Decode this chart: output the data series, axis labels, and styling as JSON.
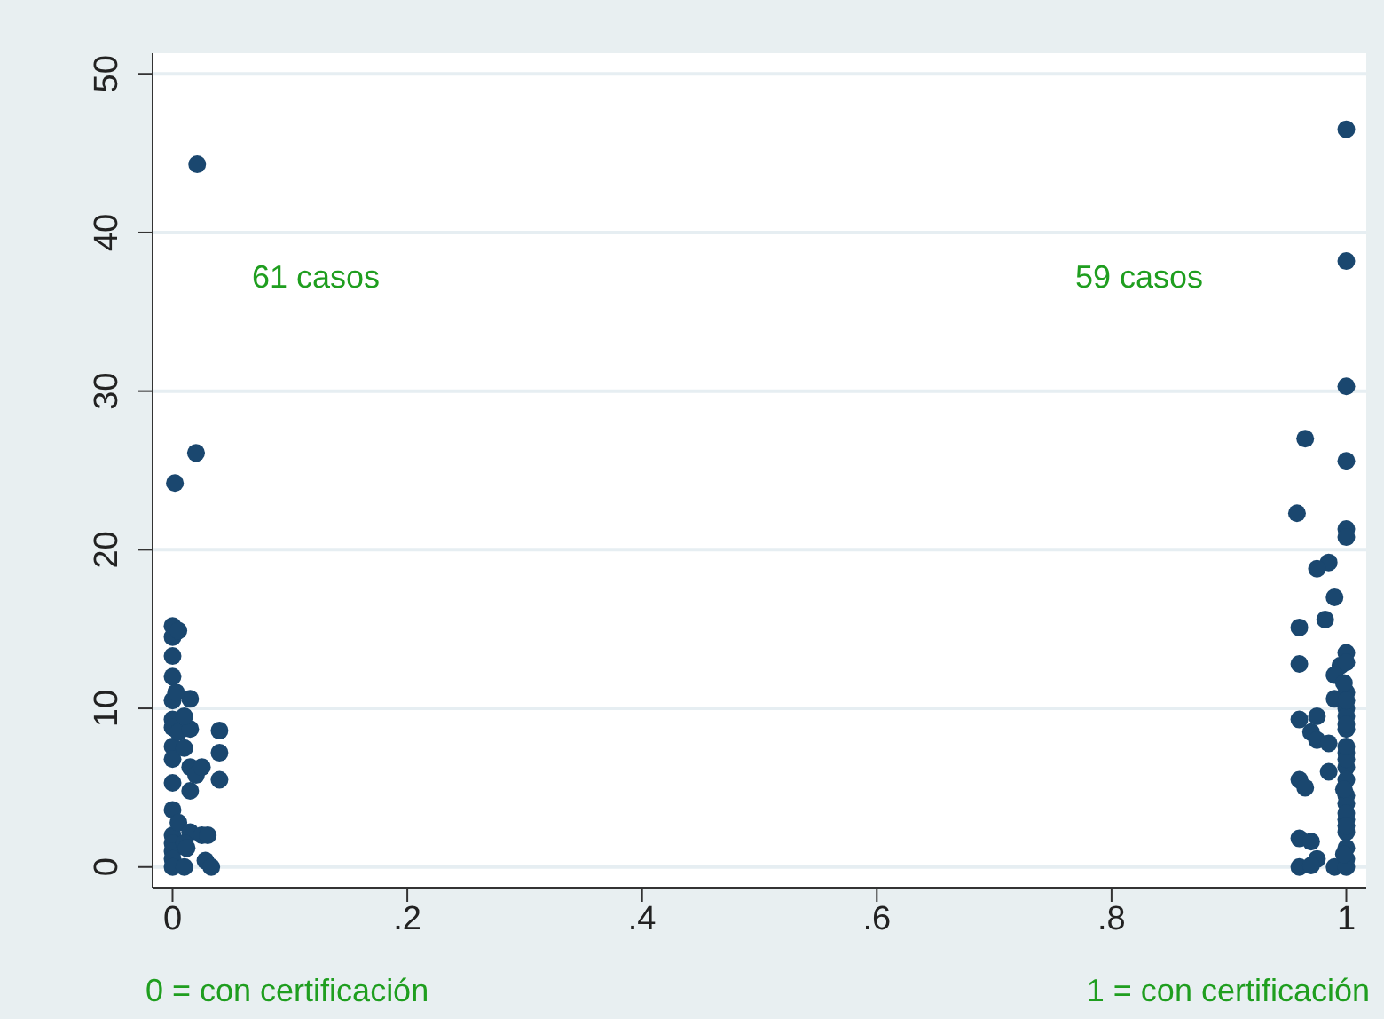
{
  "chart_data": {
    "type": "scatter",
    "marker": "circle",
    "grid": "y",
    "xlim": [
      -0.017,
      1.017
    ],
    "ylim": [
      -1.3,
      51.3
    ],
    "xticks": [
      0,
      {
        "value": 0.2,
        "label": ".2"
      },
      {
        "value": 0.4,
        "label": ".4"
      },
      {
        "value": 0.6,
        "label": ".6"
      },
      {
        "value": 0.8,
        "label": ".8"
      },
      1
    ],
    "yticks": [
      0,
      10,
      20,
      30,
      40,
      50
    ],
    "annotations": [
      "61 casos",
      "59 casos",
      "0 = con certificación",
      "1 = con certificación"
    ],
    "series": [
      {
        "color": "#1a476f",
        "x": [
          0.021,
          0.002,
          0.02,
          0,
          0,
          0,
          0,
          0,
          0,
          0,
          0,
          0,
          0,
          0,
          0,
          0,
          0,
          0,
          0,
          0.005,
          0.005,
          0.005,
          0.015,
          0.015,
          0.015,
          0.015,
          0.015,
          0.02,
          0.025,
          0.025,
          0.04,
          0.04,
          0.04,
          0.03,
          0.01,
          0.01,
          0.01,
          0.01,
          0.012,
          0.003,
          0.028,
          0.033,
          1,
          1,
          1,
          1,
          0.965,
          0.958,
          1,
          1,
          0.985,
          0.975,
          0.99,
          0.982,
          0.96,
          1,
          0.96,
          0.995,
          0.99,
          1,
          0.99,
          1,
          1,
          0.975,
          0.96,
          0.97,
          1,
          0.975,
          0.985,
          1,
          1,
          0.985,
          0.96,
          0.965,
          1,
          1,
          1,
          1,
          0.96,
          0.97,
          1,
          0.975,
          1,
          0.96,
          0.99,
          1,
          0.97,
          1,
          1,
          1,
          1,
          1,
          1,
          1,
          1,
          0.998,
          0.998,
          0.998
        ],
        "values": [
          44.3,
          24.2,
          26.1,
          15.2,
          14.5,
          13.3,
          12,
          10.5,
          9.3,
          8.8,
          7.6,
          6.8,
          5.3,
          3.6,
          2,
          1.5,
          1,
          0.5,
          0,
          14.9,
          8.5,
          2.8,
          10.6,
          8.7,
          6.3,
          4.8,
          2.2,
          5.8,
          6.3,
          2,
          8.6,
          7.2,
          5.5,
          2,
          9.5,
          7.5,
          1.5,
          0,
          1.2,
          11,
          0.4,
          0,
          46.5,
          38.2,
          30.3,
          25.6,
          27,
          22.3,
          21.3,
          20.8,
          19.2,
          18.8,
          17,
          15.6,
          15.1,
          13.5,
          12.8,
          12.7,
          12.1,
          11,
          10.6,
          10,
          9.5,
          9.5,
          9.3,
          8.5,
          8.7,
          8,
          7.8,
          7.2,
          6.3,
          6,
          5.5,
          5,
          5.5,
          4.5,
          3,
          2.2,
          1.8,
          1.6,
          1.2,
          0.5,
          0.5,
          0,
          0,
          0,
          0.1,
          9,
          10.5,
          4,
          3.4,
          2.6,
          6.8,
          7.6,
          12.9,
          11.6,
          4.9,
          0.8
        ]
      }
    ]
  }
}
